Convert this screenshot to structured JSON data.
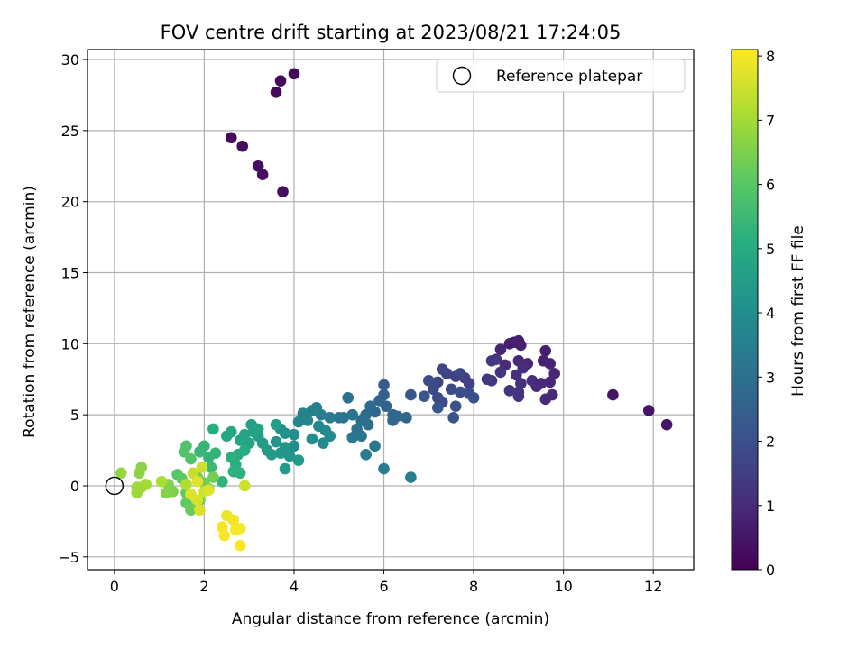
{
  "chart_data": {
    "type": "scatter",
    "title": "FOV centre drift starting at 2023/08/21 17:24:05",
    "xlabel": "Angular distance from reference (arcmin)",
    "ylabel": "Rotation from reference (arcmin)",
    "xlim": [
      -0.6,
      12.9
    ],
    "ylim": [
      -5.9,
      30.7
    ],
    "xticks": [
      0,
      2,
      4,
      6,
      8,
      10,
      12
    ],
    "yticks": [
      -5,
      0,
      5,
      10,
      15,
      20,
      25,
      30
    ],
    "grid": true,
    "legend": {
      "position": "top-right",
      "label": "Reference platepar"
    },
    "reference_point": {
      "x": 0,
      "y": 0
    },
    "colorbar": {
      "label": "Hours from first FF file",
      "colormap": "viridis",
      "range": [
        0,
        8.1
      ],
      "ticks": [
        0,
        1,
        2,
        3,
        4,
        5,
        6,
        7,
        8
      ]
    },
    "series": [
      {
        "color_value": "Hours from first FF file",
        "points": [
          {
            "x": 4.0,
            "y": 29.0,
            "c": 0.2
          },
          {
            "x": 3.7,
            "y": 28.5,
            "c": 0.2
          },
          {
            "x": 3.6,
            "y": 27.7,
            "c": 0.25
          },
          {
            "x": 2.6,
            "y": 24.5,
            "c": 0.25
          },
          {
            "x": 2.85,
            "y": 23.9,
            "c": 0.3
          },
          {
            "x": 3.2,
            "y": 22.5,
            "c": 0.3
          },
          {
            "x": 3.3,
            "y": 21.9,
            "c": 0.35
          },
          {
            "x": 3.75,
            "y": 20.7,
            "c": 0.35
          },
          {
            "x": 11.1,
            "y": 6.4,
            "c": 0.5
          },
          {
            "x": 11.9,
            "y": 5.3,
            "c": 0.5
          },
          {
            "x": 12.3,
            "y": 4.3,
            "c": 0.45
          },
          {
            "x": 8.8,
            "y": 10.0,
            "c": 0.7
          },
          {
            "x": 8.9,
            "y": 10.1,
            "c": 0.65
          },
          {
            "x": 9.0,
            "y": 10.2,
            "c": 0.7
          },
          {
            "x": 9.05,
            "y": 9.9,
            "c": 0.75
          },
          {
            "x": 9.6,
            "y": 9.5,
            "c": 0.7
          },
          {
            "x": 9.55,
            "y": 8.8,
            "c": 0.8
          },
          {
            "x": 9.7,
            "y": 8.6,
            "c": 0.85
          },
          {
            "x": 9.8,
            "y": 7.9,
            "c": 0.9
          },
          {
            "x": 9.7,
            "y": 7.3,
            "c": 0.95
          },
          {
            "x": 9.75,
            "y": 6.4,
            "c": 1.0
          },
          {
            "x": 9.6,
            "y": 6.1,
            "c": 1.0
          },
          {
            "x": 9.4,
            "y": 7.0,
            "c": 1.05
          },
          {
            "x": 9.2,
            "y": 8.6,
            "c": 0.9
          },
          {
            "x": 9.0,
            "y": 8.8,
            "c": 0.95
          },
          {
            "x": 8.6,
            "y": 9.6,
            "c": 0.85
          },
          {
            "x": 8.7,
            "y": 8.5,
            "c": 1.0
          },
          {
            "x": 9.1,
            "y": 8.3,
            "c": 1.05
          },
          {
            "x": 8.95,
            "y": 7.8,
            "c": 1.1
          },
          {
            "x": 9.3,
            "y": 7.4,
            "c": 1.1
          },
          {
            "x": 9.05,
            "y": 7.2,
            "c": 1.15
          },
          {
            "x": 9.0,
            "y": 6.6,
            "c": 1.2
          },
          {
            "x": 9.0,
            "y": 6.3,
            "c": 1.25
          },
          {
            "x": 8.8,
            "y": 6.7,
            "c": 1.25
          },
          {
            "x": 8.6,
            "y": 8.0,
            "c": 1.2
          },
          {
            "x": 8.4,
            "y": 8.8,
            "c": 1.3
          },
          {
            "x": 8.5,
            "y": 8.9,
            "c": 1.3
          },
          {
            "x": 8.4,
            "y": 7.4,
            "c": 1.35
          },
          {
            "x": 8.3,
            "y": 7.5,
            "c": 1.4
          },
          {
            "x": 9.5,
            "y": 7.2,
            "c": 1.0
          },
          {
            "x": 7.8,
            "y": 7.6,
            "c": 1.5
          },
          {
            "x": 7.9,
            "y": 7.2,
            "c": 1.55
          },
          {
            "x": 7.6,
            "y": 7.7,
            "c": 1.6
          },
          {
            "x": 7.4,
            "y": 7.9,
            "c": 1.65
          },
          {
            "x": 7.3,
            "y": 8.2,
            "c": 1.7
          },
          {
            "x": 7.2,
            "y": 7.3,
            "c": 1.75
          },
          {
            "x": 7.1,
            "y": 6.8,
            "c": 1.8
          },
          {
            "x": 7.2,
            "y": 6.2,
            "c": 1.85
          },
          {
            "x": 7.3,
            "y": 5.9,
            "c": 1.9
          },
          {
            "x": 7.5,
            "y": 6.8,
            "c": 1.9
          },
          {
            "x": 7.7,
            "y": 6.6,
            "c": 1.95
          },
          {
            "x": 7.9,
            "y": 6.5,
            "c": 2.0
          },
          {
            "x": 8.0,
            "y": 6.2,
            "c": 2.0
          },
          {
            "x": 7.6,
            "y": 5.6,
            "c": 2.05
          },
          {
            "x": 7.55,
            "y": 4.8,
            "c": 2.1
          },
          {
            "x": 7.7,
            "y": 7.9,
            "c": 1.75
          },
          {
            "x": 7.2,
            "y": 5.5,
            "c": 2.15
          },
          {
            "x": 6.9,
            "y": 6.3,
            "c": 2.2
          },
          {
            "x": 6.6,
            "y": 6.4,
            "c": 2.25
          },
          {
            "x": 7.0,
            "y": 7.4,
            "c": 1.9
          },
          {
            "x": 6.0,
            "y": 7.1,
            "c": 2.4
          },
          {
            "x": 6.0,
            "y": 6.4,
            "c": 2.5
          },
          {
            "x": 5.9,
            "y": 6.0,
            "c": 2.55
          },
          {
            "x": 6.05,
            "y": 5.6,
            "c": 2.6
          },
          {
            "x": 5.8,
            "y": 5.2,
            "c": 2.65
          },
          {
            "x": 6.2,
            "y": 5.0,
            "c": 2.7
          },
          {
            "x": 6.5,
            "y": 4.8,
            "c": 2.7
          },
          {
            "x": 6.3,
            "y": 4.9,
            "c": 2.75
          },
          {
            "x": 6.2,
            "y": 4.6,
            "c": 2.8
          },
          {
            "x": 5.7,
            "y": 5.6,
            "c": 2.85
          },
          {
            "x": 5.6,
            "y": 5.0,
            "c": 2.9
          },
          {
            "x": 5.5,
            "y": 4.6,
            "c": 2.95
          },
          {
            "x": 5.65,
            "y": 4.3,
            "c": 3.0
          },
          {
            "x": 5.4,
            "y": 4.0,
            "c": 3.05
          },
          {
            "x": 5.2,
            "y": 6.2,
            "c": 3.0
          },
          {
            "x": 5.3,
            "y": 5.0,
            "c": 3.1
          },
          {
            "x": 5.1,
            "y": 4.8,
            "c": 3.15
          },
          {
            "x": 5.0,
            "y": 4.8,
            "c": 3.2
          },
          {
            "x": 5.5,
            "y": 3.5,
            "c": 3.2
          },
          {
            "x": 5.3,
            "y": 3.4,
            "c": 3.3
          },
          {
            "x": 5.6,
            "y": 2.2,
            "c": 3.35
          },
          {
            "x": 5.8,
            "y": 2.8,
            "c": 3.3
          },
          {
            "x": 6.0,
            "y": 1.2,
            "c": 3.4
          },
          {
            "x": 6.6,
            "y": 0.6,
            "c": 3.5
          },
          {
            "x": 4.8,
            "y": 4.8,
            "c": 3.4
          },
          {
            "x": 4.6,
            "y": 5.0,
            "c": 3.45
          },
          {
            "x": 4.5,
            "y": 5.5,
            "c": 3.5
          },
          {
            "x": 4.4,
            "y": 5.3,
            "c": 3.55
          },
          {
            "x": 4.2,
            "y": 5.1,
            "c": 3.6
          },
          {
            "x": 4.1,
            "y": 4.5,
            "c": 3.65
          },
          {
            "x": 4.3,
            "y": 4.6,
            "c": 3.7
          },
          {
            "x": 4.55,
            "y": 4.2,
            "c": 3.75
          },
          {
            "x": 4.7,
            "y": 3.9,
            "c": 3.8
          },
          {
            "x": 4.65,
            "y": 3.0,
            "c": 3.85
          },
          {
            "x": 4.8,
            "y": 3.5,
            "c": 3.9
          },
          {
            "x": 4.4,
            "y": 3.3,
            "c": 3.95
          },
          {
            "x": 4.0,
            "y": 3.6,
            "c": 4.0
          },
          {
            "x": 4.0,
            "y": 2.8,
            "c": 4.05
          },
          {
            "x": 3.8,
            "y": 3.7,
            "c": 4.1
          },
          {
            "x": 3.7,
            "y": 4.0,
            "c": 4.15
          },
          {
            "x": 3.6,
            "y": 3.1,
            "c": 4.2
          },
          {
            "x": 3.8,
            "y": 2.7,
            "c": 4.25
          },
          {
            "x": 3.7,
            "y": 2.3,
            "c": 4.3
          },
          {
            "x": 3.9,
            "y": 2.1,
            "c": 4.3
          },
          {
            "x": 4.1,
            "y": 1.8,
            "c": 4.35
          },
          {
            "x": 3.8,
            "y": 1.2,
            "c": 4.35
          },
          {
            "x": 3.5,
            "y": 2.2,
            "c": 4.4
          },
          {
            "x": 3.4,
            "y": 2.5,
            "c": 4.45
          },
          {
            "x": 3.3,
            "y": 3.0,
            "c": 4.5
          },
          {
            "x": 3.2,
            "y": 3.5,
            "c": 4.55
          },
          {
            "x": 3.1,
            "y": 3.8,
            "c": 4.6
          },
          {
            "x": 3.05,
            "y": 4.3,
            "c": 4.6
          },
          {
            "x": 3.6,
            "y": 4.3,
            "c": 4.55
          },
          {
            "x": 3.2,
            "y": 4.0,
            "c": 4.65
          },
          {
            "x": 3.0,
            "y": 3.0,
            "c": 4.7
          },
          {
            "x": 2.9,
            "y": 3.6,
            "c": 4.75
          },
          {
            "x": 2.8,
            "y": 3.2,
            "c": 4.8
          },
          {
            "x": 2.6,
            "y": 3.8,
            "c": 4.85
          },
          {
            "x": 2.5,
            "y": 3.5,
            "c": 4.9
          },
          {
            "x": 2.75,
            "y": 2.2,
            "c": 5.0
          },
          {
            "x": 2.9,
            "y": 2.5,
            "c": 5.0
          },
          {
            "x": 2.2,
            "y": 4.0,
            "c": 5.05
          },
          {
            "x": 2.7,
            "y": 1.5,
            "c": 5.1
          },
          {
            "x": 2.6,
            "y": 2.0,
            "c": 5.15
          },
          {
            "x": 2.65,
            "y": 1.0,
            "c": 5.2
          },
          {
            "x": 2.8,
            "y": 0.9,
            "c": 5.2
          },
          {
            "x": 2.4,
            "y": 0.3,
            "c": 5.25
          },
          {
            "x": 2.25,
            "y": 2.3,
            "c": 5.3
          },
          {
            "x": 2.1,
            "y": 2.0,
            "c": 5.3
          },
          {
            "x": 2.0,
            "y": 2.8,
            "c": 5.35
          },
          {
            "x": 1.9,
            "y": 2.4,
            "c": 5.4
          },
          {
            "x": 2.15,
            "y": 1.3,
            "c": 5.45
          },
          {
            "x": 1.6,
            "y": 2.8,
            "c": 5.8
          },
          {
            "x": 1.55,
            "y": 2.4,
            "c": 5.85
          },
          {
            "x": 1.7,
            "y": 1.9,
            "c": 5.9
          },
          {
            "x": 1.4,
            "y": 0.8,
            "c": 6.0
          },
          {
            "x": 1.5,
            "y": 0.5,
            "c": 6.05
          },
          {
            "x": 1.6,
            "y": -0.5,
            "c": 6.1
          },
          {
            "x": 1.6,
            "y": -1.2,
            "c": 6.15
          },
          {
            "x": 1.7,
            "y": -1.7,
            "c": 6.2
          },
          {
            "x": 1.9,
            "y": -1.0,
            "c": 6.25
          },
          {
            "x": 1.8,
            "y": -1.5,
            "c": 6.3
          },
          {
            "x": 2.0,
            "y": 0.2,
            "c": 6.3
          },
          {
            "x": 2.2,
            "y": 0.6,
            "c": 6.35
          },
          {
            "x": 2.1,
            "y": -0.2,
            "c": 6.4
          },
          {
            "x": 1.85,
            "y": 0.6,
            "c": 6.45
          },
          {
            "x": 1.3,
            "y": -0.4,
            "c": 6.5
          },
          {
            "x": 1.2,
            "y": 0.1,
            "c": 6.55
          },
          {
            "x": 1.15,
            "y": -0.5,
            "c": 6.6
          },
          {
            "x": 0.6,
            "y": 1.3,
            "c": 6.65
          },
          {
            "x": 0.55,
            "y": 0.9,
            "c": 6.7
          },
          {
            "x": 0.15,
            "y": 0.9,
            "c": 6.8
          },
          {
            "x": 0.6,
            "y": -0.1,
            "c": 6.85
          },
          {
            "x": 0.5,
            "y": -0.5,
            "c": 6.9
          },
          {
            "x": 0.5,
            "y": -0.1,
            "c": 6.95
          },
          {
            "x": 0.7,
            "y": 0.1,
            "c": 7.0
          },
          {
            "x": 1.05,
            "y": 0.3,
            "c": 7.1
          },
          {
            "x": 1.6,
            "y": 0.1,
            "c": 7.2
          },
          {
            "x": 1.7,
            "y": -0.6,
            "c": 7.3
          },
          {
            "x": 1.75,
            "y": 0.9,
            "c": 7.4
          },
          {
            "x": 1.95,
            "y": 1.3,
            "c": 7.5
          },
          {
            "x": 2.0,
            "y": -0.4,
            "c": 7.55
          },
          {
            "x": 1.85,
            "y": -1.0,
            "c": 7.6
          },
          {
            "x": 1.9,
            "y": -1.7,
            "c": 7.65
          },
          {
            "x": 1.7,
            "y": -0.6,
            "c": 7.7
          },
          {
            "x": 2.1,
            "y": -0.3,
            "c": 7.7
          },
          {
            "x": 1.85,
            "y": 0.3,
            "c": 7.75
          },
          {
            "x": 2.9,
            "y": 0.0,
            "c": 7.5
          },
          {
            "x": 2.5,
            "y": -2.1,
            "c": 7.9
          },
          {
            "x": 2.65,
            "y": -2.4,
            "c": 7.95
          },
          {
            "x": 2.4,
            "y": -2.9,
            "c": 8.0
          },
          {
            "x": 2.45,
            "y": -3.5,
            "c": 8.05
          },
          {
            "x": 2.7,
            "y": -3.1,
            "c": 8.05
          },
          {
            "x": 2.8,
            "y": -3.0,
            "c": 8.0
          },
          {
            "x": 2.8,
            "y": -4.2,
            "c": 8.1
          }
        ]
      }
    ]
  }
}
